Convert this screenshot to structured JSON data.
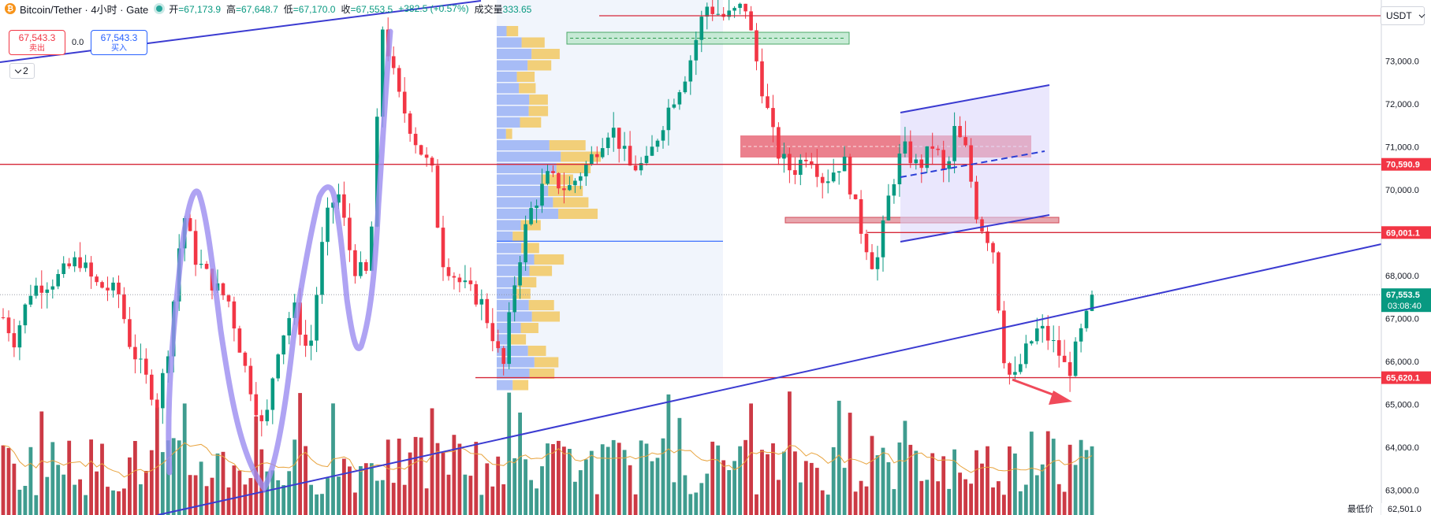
{
  "header": {
    "symbol_title": "Bitcoin/Tether · 4小时 · Gate",
    "coin_icon": "bitcoin-icon",
    "open_label": "开",
    "open_value": "=67,173.9",
    "high_label": "高",
    "high_value": "=67,648.7",
    "low_label": "低",
    "low_value": "=67,170.0",
    "close_label": "收",
    "close_value": "=67,553.5",
    "change_value": "+382.5 (+0.57%)",
    "volume_label": "成交量",
    "volume_value": "333.65"
  },
  "trade": {
    "sell_price": "67,543.3",
    "sell_label": "卖出",
    "spread": "0.0",
    "buy_price": "67,543.3",
    "buy_label": "买入"
  },
  "indicator_toggle": "2",
  "currency_select": "USDT",
  "min_price_label": "最低价",
  "chart_data": {
    "type": "candlestick",
    "symbol": "Bitcoin/Tether",
    "interval": "4小时",
    "exchange": "Gate",
    "currency": "USDT",
    "y_axis_ticks": [
      73000,
      72000,
      71000,
      70000,
      69000,
      68000,
      67000,
      66000,
      65000,
      64000,
      63000
    ],
    "y_axis_tick_labels": [
      "73,000.0",
      "72,000.0",
      "71,000.0",
      "70,000.0",
      "69,000.0",
      "68,000.0",
      "67,000.0",
      "66,000.0",
      "65,000.0",
      "64,000.0",
      "63,000.0"
    ],
    "ylim": [
      62420,
      74420
    ],
    "price_tags": [
      {
        "value": 70590.9,
        "label": "70,590.9",
        "color": "#f23645"
      },
      {
        "value": 69001.1,
        "label": "69,001.1",
        "color": "#f23645"
      },
      {
        "value": 67553.5,
        "label": "67,553.5",
        "sublabel": "03:08:40",
        "color": "#089981"
      },
      {
        "value": 65620.1,
        "label": "65,620.1",
        "color": "#f23645"
      },
      {
        "value": 62501.0,
        "label": "62,501.0",
        "color": "#131722"
      }
    ],
    "horizontal_lines": [
      74180,
      70590.9,
      69001.1,
      65620.1
    ],
    "candle_count": 199,
    "up_color": "#089981",
    "down_color": "#f23645",
    "volume_up_color": "#3f9c8f",
    "volume_down_color": "#cc3a45",
    "volume_ma_color": "#e8a33d",
    "trendline_color": "#3b3bd1",
    "highlight_color": "#9b8cf0",
    "volume_profile_color": "#6a8cf0",
    "volume_profile_value_color": "#f2c14e"
  }
}
